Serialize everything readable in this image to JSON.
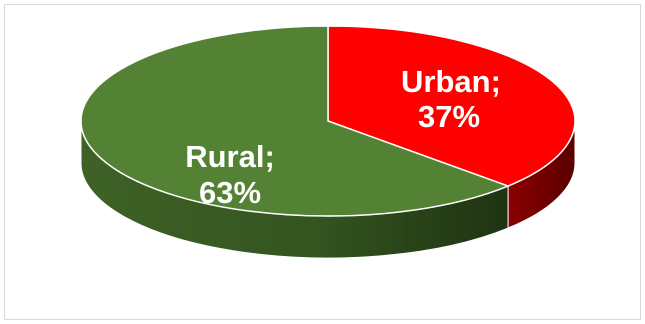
{
  "chart_data": {
    "type": "pie",
    "style": "3d",
    "title": "",
    "start_angle_deg": 90,
    "slices": [
      {
        "name": "Urban",
        "value": 37,
        "label_name": "Urban;",
        "label_value": "37%",
        "color": "#ff0000",
        "side_color": "#b00000"
      },
      {
        "name": "Rural",
        "value": 63,
        "label_name": "Rural;",
        "label_value": "63%",
        "color": "#548235",
        "side_color": "#3a5c23"
      }
    ],
    "legend": "none"
  }
}
